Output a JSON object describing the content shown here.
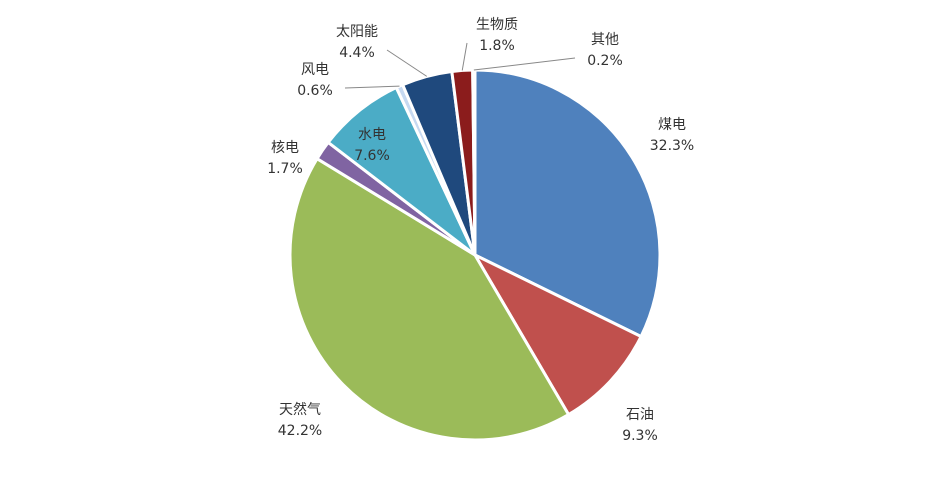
{
  "chart_data": {
    "type": "pie",
    "categories": [
      "煤电",
      "石油",
      "天然气",
      "核电",
      "水电",
      "风电",
      "太阳能",
      "生物质",
      "其他"
    ],
    "values": [
      32.3,
      9.3,
      42.2,
      1.7,
      7.6,
      0.6,
      4.4,
      1.8,
      0.2
    ],
    "value_labels": [
      "32.3%",
      "9.3%",
      "42.2%",
      "1.7%",
      "7.6%",
      "0.6%",
      "4.4%",
      "1.8%",
      "0.2%"
    ],
    "colors": [
      "#4f81bd",
      "#c0504d",
      "#9bbb59",
      "#8064a2",
      "#4bacc6",
      "#c6d9f1",
      "#1f497d",
      "#8b1c1c",
      "#9c9c9c"
    ]
  }
}
